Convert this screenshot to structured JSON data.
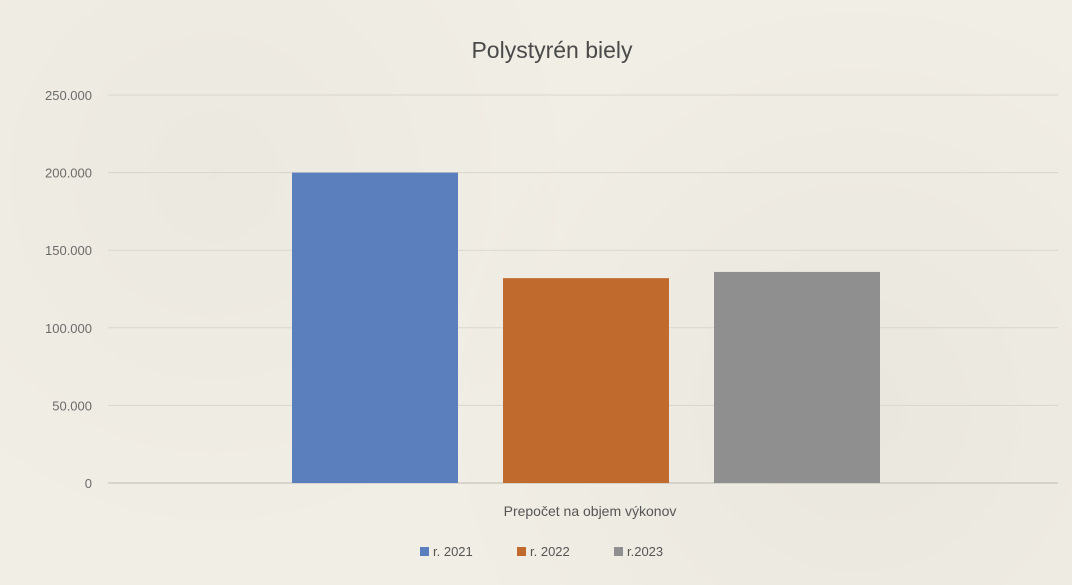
{
  "chart_data": {
    "type": "bar",
    "title": "Polystyrén biely",
    "categories": [
      "Prepočet na objem výkonov"
    ],
    "series": [
      {
        "name": "r. 2021",
        "values": [
          200000
        ],
        "color": "#5b7fbd"
      },
      {
        "name": "r. 2022",
        "values": [
          132000
        ],
        "color": "#c06a2d"
      },
      {
        "name": "r.2023",
        "values": [
          136000
        ],
        "color": "#8f8f8f"
      }
    ],
    "ylim": [
      0,
      250000
    ],
    "yticks": [
      {
        "value": 0,
        "label": "0"
      },
      {
        "value": 50000,
        "label": "50.000"
      },
      {
        "value": 100000,
        "label": "100.000"
      },
      {
        "value": 150000,
        "label": "150.000"
      },
      {
        "value": 200000,
        "label": "200.000"
      },
      {
        "value": 250000,
        "label": "250.000"
      }
    ],
    "xlabel": "",
    "ylabel": "",
    "grid": true,
    "legend_position": "bottom"
  }
}
